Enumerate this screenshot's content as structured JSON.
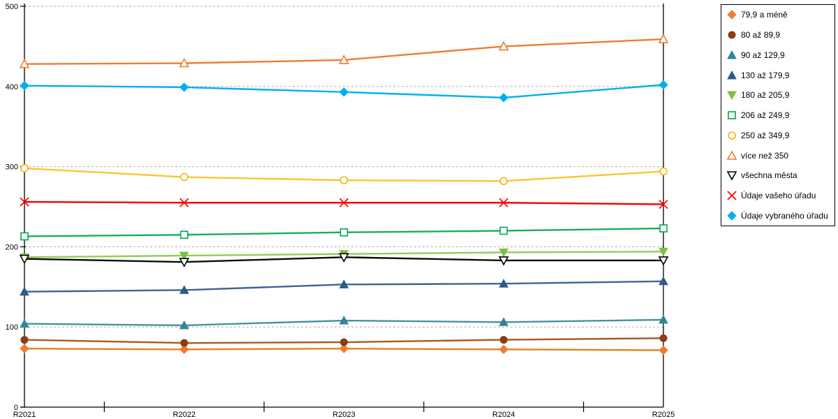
{
  "chart_data": {
    "type": "line",
    "categories": [
      "R2021",
      "R2022",
      "R2023",
      "R2024",
      "R2025"
    ],
    "series": [
      {
        "name": "79,9 a méně",
        "marker": "diamond-filled",
        "color": "#ED7D31",
        "line_color": "#E8801F",
        "values": [
          73,
          72,
          73,
          72,
          71
        ]
      },
      {
        "name": "80 až 89,9",
        "marker": "circle-filled",
        "color": "#8B3E0E",
        "line_color": "#A55B21",
        "values": [
          84,
          80,
          81,
          84,
          86
        ]
      },
      {
        "name": "90 až 129,9",
        "marker": "triangle-up-filled",
        "color": "#31849B",
        "line_color": "#45929F",
        "values": [
          104,
          102,
          108,
          106,
          109
        ]
      },
      {
        "name": "130 až 179,9",
        "marker": "triangle-up-filled",
        "color": "#2E5A88",
        "line_color": "#3D6494",
        "values": [
          144,
          146,
          153,
          154,
          157
        ]
      },
      {
        "name": "180 až 205,9",
        "marker": "triangle-down-filled",
        "color": "#7DC142",
        "line_color": "#90CE55",
        "values": [
          187,
          189,
          191,
          193,
          194
        ]
      },
      {
        "name": "206 až 249,9",
        "marker": "square-open",
        "color": "#00A651",
        "line_color": "#16AE60",
        "values": [
          213,
          215,
          218,
          220,
          223
        ]
      },
      {
        "name": "250 až 349,9",
        "marker": "circle-open",
        "color": "#F2B705",
        "line_color": "#FBC52F",
        "values": [
          298,
          287,
          283,
          282,
          294
        ]
      },
      {
        "name": "více než 350",
        "marker": "triangle-up-open",
        "color": "#ED7D31",
        "line_color": "#ED7D31",
        "values": [
          428,
          429,
          433,
          450,
          459
        ]
      },
      {
        "name": "všechna města",
        "marker": "triangle-down-open",
        "color": "#000000",
        "line_color": "#0D0D0D",
        "values": [
          185,
          181,
          187,
          183,
          183
        ]
      },
      {
        "name": "Údaje vašeho úřadu",
        "marker": "x",
        "color": "#FF0000",
        "line_color": "#F50000",
        "values": [
          256,
          255,
          255,
          255,
          253
        ]
      },
      {
        "name": "Údaje vybraného úřadu",
        "marker": "diamond-filled",
        "color": "#00B0F0",
        "line_color": "#00B0F0",
        "values": [
          401,
          399,
          393,
          386,
          402
        ]
      }
    ],
    "ylim": [
      0,
      500
    ],
    "yticks": [
      0,
      100,
      200,
      300,
      400,
      500
    ],
    "grid": "horizontal-dashed",
    "legend_position": "right"
  },
  "colors": {
    "gridline": "#ABABAB",
    "axis": "#000000",
    "background": "#FFFFFF",
    "legend_border": "#000000",
    "text": "#000000"
  }
}
